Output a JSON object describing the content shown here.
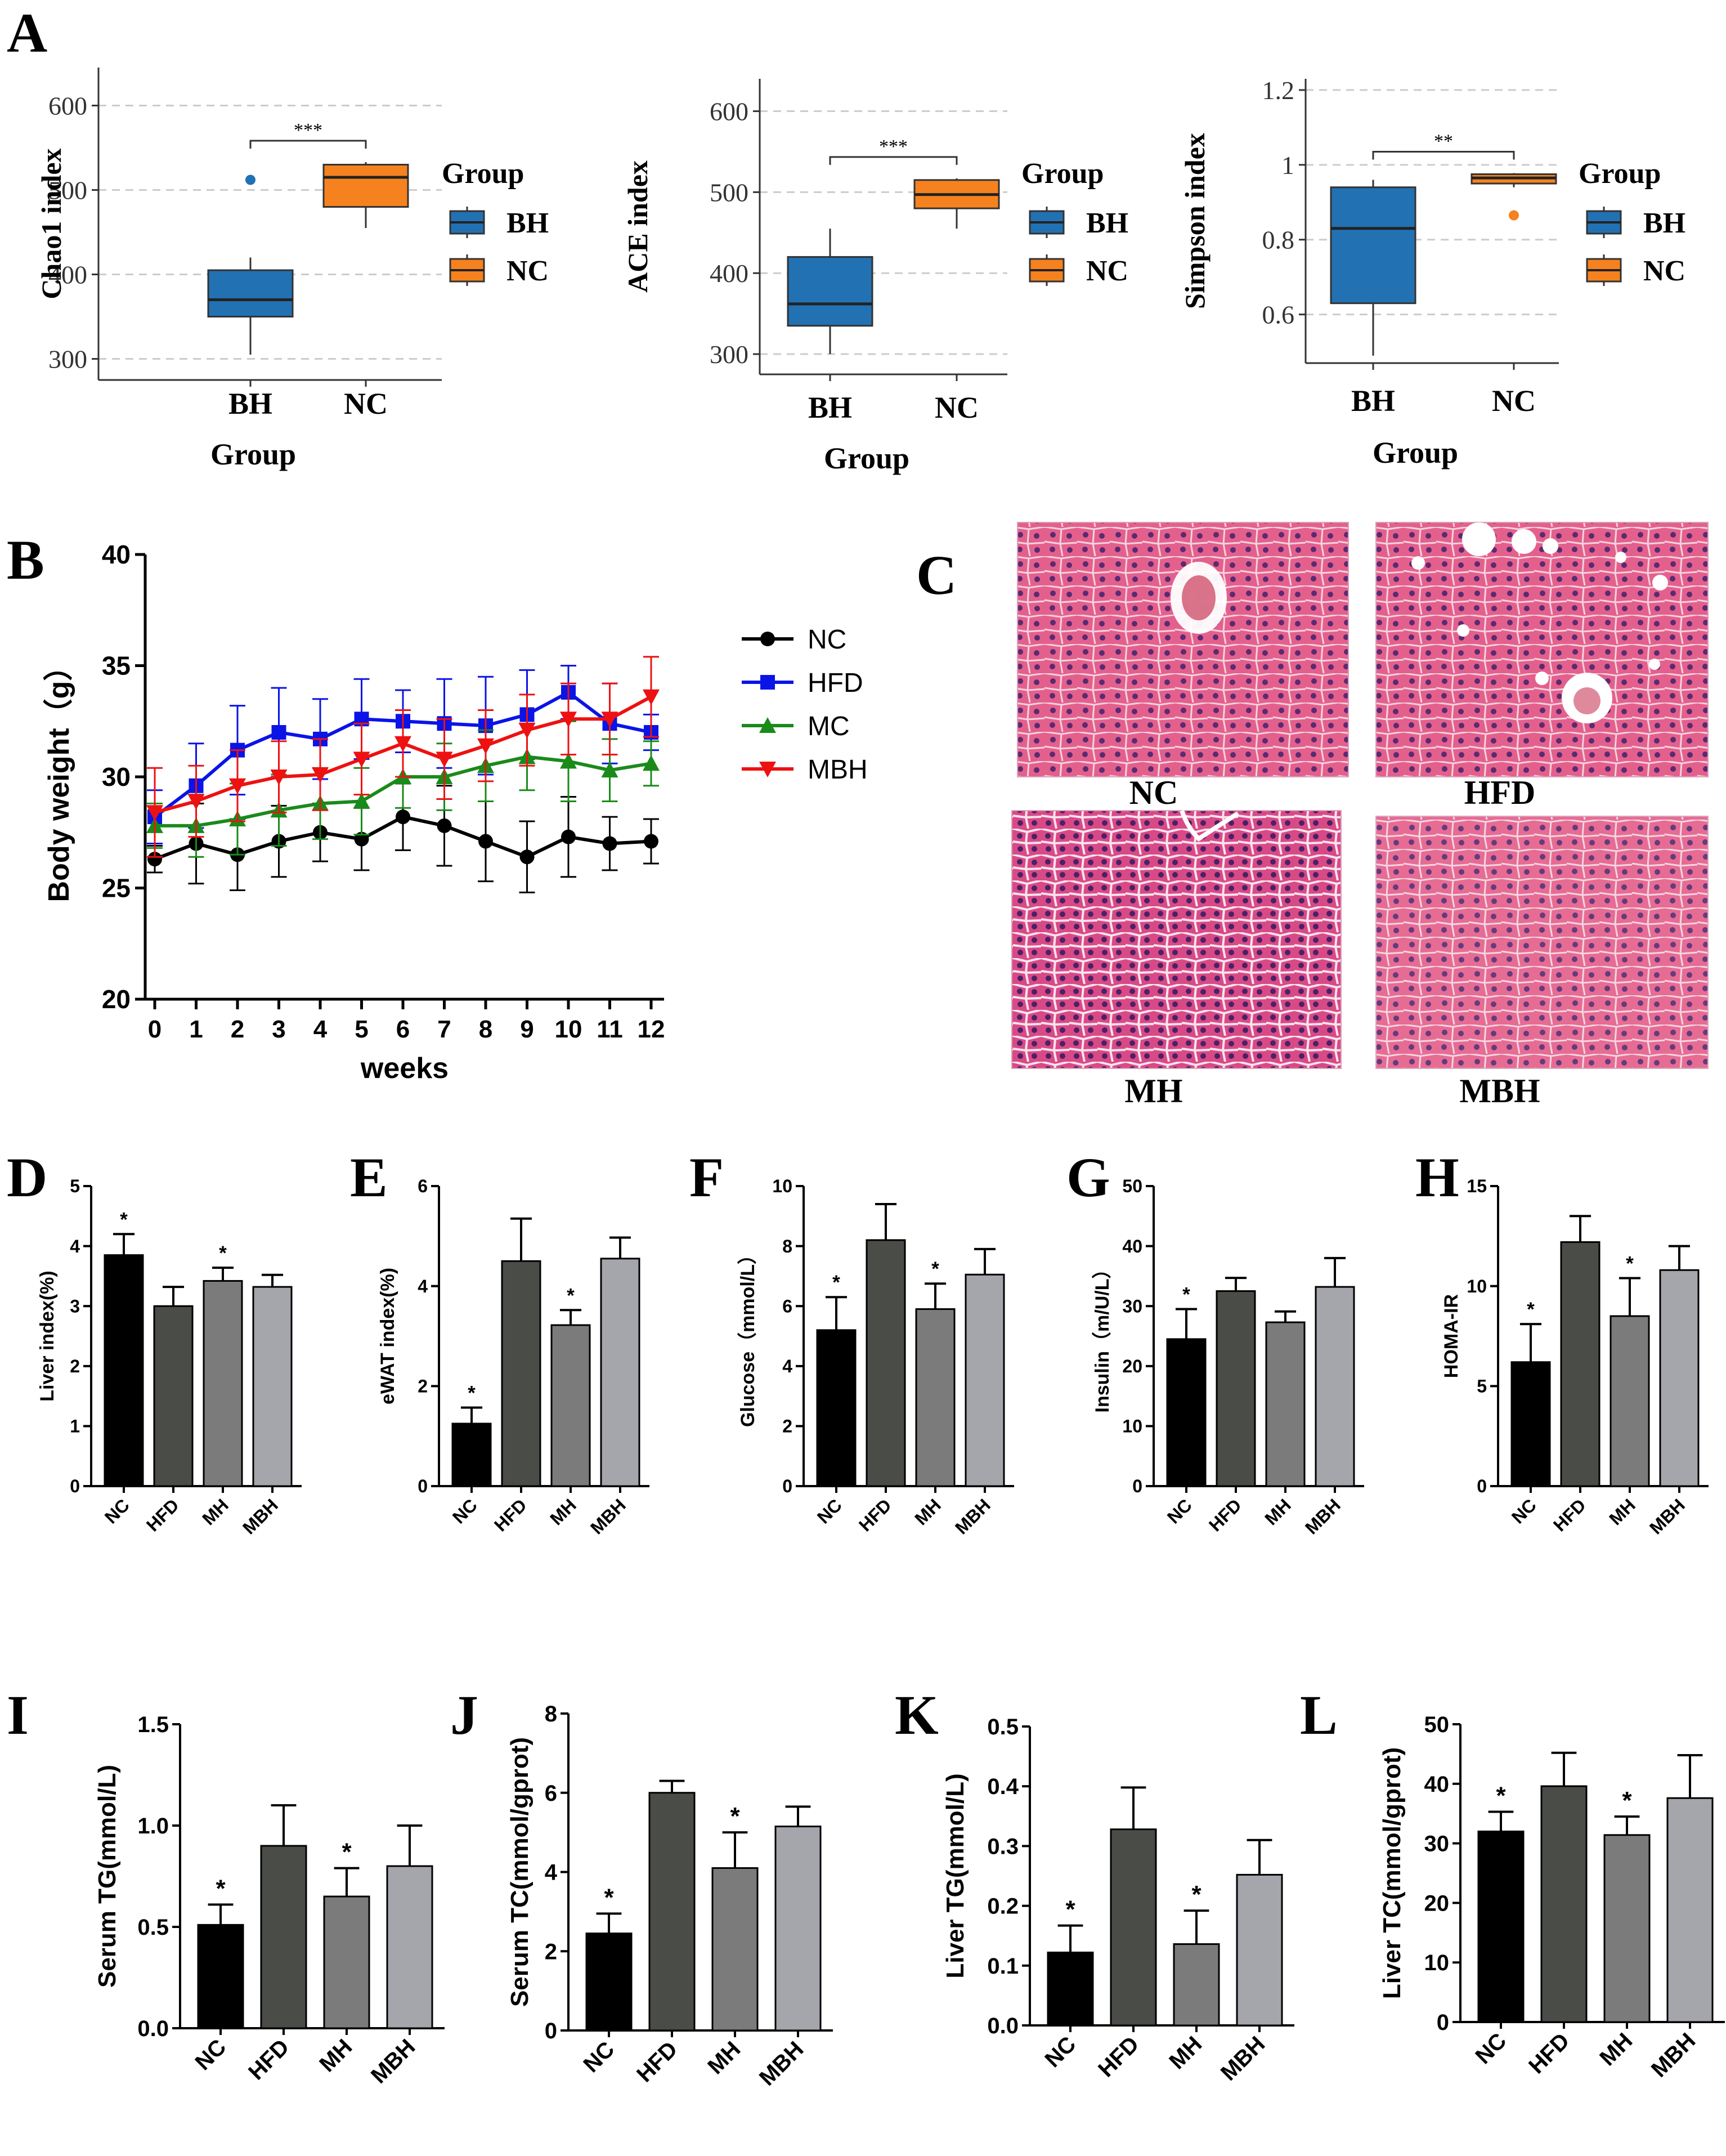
{
  "figure": {
    "panel_labels": {
      "A": "A",
      "B": "B",
      "C": "C",
      "D": "D",
      "E": "E",
      "F": "F",
      "G": "G",
      "H": "H",
      "I": "I",
      "J": "J",
      "K": "K",
      "L": "L"
    },
    "colors": {
      "bh": "#2271b3",
      "nc_orange": "#f5821f",
      "nc_line": "#000000",
      "hfd_line": "#0a14e6",
      "mc_line": "#1a8a1a",
      "mbh_line": "#ee1111",
      "bar_nc": "#000000",
      "bar_hfd": "#4a4c48",
      "bar_mh": "#7b7b7b",
      "bar_mbh": "#a5a6ac"
    }
  },
  "histology": {
    "labels": [
      "NC",
      "HFD",
      "MH",
      "MBH"
    ]
  },
  "chart_data": [
    {
      "id": "A1",
      "type": "box",
      "ylabel": "Chao1 index",
      "xlabel": "Group",
      "categories": [
        "BH",
        "NC"
      ],
      "ylim": [
        275,
        645
      ],
      "yticks": [
        300,
        400,
        500,
        600
      ],
      "boxes": [
        {
          "name": "BH",
          "whisker_low": 305,
          "q1": 350,
          "median": 370,
          "q3": 405,
          "whisker_high": 420,
          "outliers": [
            512
          ]
        },
        {
          "name": "NC",
          "whisker_low": 455,
          "q1": 480,
          "median": 515,
          "q3": 530,
          "whisker_high": 533,
          "outliers": []
        }
      ],
      "significance": "***",
      "legend": {
        "title": "Group",
        "items": [
          "BH",
          "NC"
        ]
      }
    },
    {
      "id": "A2",
      "type": "box",
      "ylabel": "ACE index",
      "xlabel": "Group",
      "categories": [
        "BH",
        "NC"
      ],
      "ylim": [
        275,
        640
      ],
      "yticks": [
        300,
        400,
        500,
        600
      ],
      "boxes": [
        {
          "name": "BH",
          "whisker_low": 300,
          "q1": 335,
          "median": 362,
          "q3": 420,
          "whisker_high": 455,
          "outliers": []
        },
        {
          "name": "NC",
          "whisker_low": 455,
          "q1": 480,
          "median": 497,
          "q3": 515,
          "whisker_high": 517,
          "outliers": []
        }
      ],
      "significance": "***",
      "legend": {
        "title": "Group",
        "items": [
          "BH",
          "NC"
        ]
      }
    },
    {
      "id": "A3",
      "type": "box",
      "ylabel": "Simpson index",
      "xlabel": "Group",
      "categories": [
        "BH",
        "NC"
      ],
      "ylim": [
        0.47,
        1.23
      ],
      "yticks": [
        0.6,
        0.8,
        1.0,
        1.2
      ],
      "ytick_labels": [
        "0.6",
        "0.8",
        "1",
        "1.2"
      ],
      "boxes": [
        {
          "name": "BH",
          "whisker_low": 0.49,
          "q1": 0.63,
          "median": 0.83,
          "q3": 0.94,
          "whisker_high": 0.96,
          "outliers": []
        },
        {
          "name": "NC",
          "whisker_low": 0.94,
          "q1": 0.95,
          "median": 0.965,
          "q3": 0.975,
          "whisker_high": 0.978,
          "outliers": [
            0.865
          ]
        }
      ],
      "significance": "**",
      "legend": {
        "title": "Group",
        "items": [
          "BH",
          "NC"
        ]
      }
    },
    {
      "id": "B",
      "type": "line",
      "xlabel": "weeks",
      "ylabel": "Body weight（g）",
      "x": [
        0,
        1,
        2,
        3,
        4,
        5,
        6,
        7,
        8,
        9,
        10,
        11,
        12
      ],
      "ylim": [
        20,
        40
      ],
      "yticks": [
        20,
        25,
        30,
        35,
        40
      ],
      "series": [
        {
          "name": "NC",
          "marker": "circle",
          "values": [
            26.3,
            27.0,
            26.5,
            27.1,
            27.5,
            27.2,
            28.2,
            27.8,
            27.1,
            26.4,
            27.3,
            27.0,
            27.1
          ],
          "errors": [
            0.6,
            1.8,
            1.6,
            1.6,
            1.3,
            1.4,
            1.5,
            1.8,
            1.8,
            1.6,
            1.8,
            1.2,
            1.0
          ]
        },
        {
          "name": "HFD",
          "marker": "square",
          "values": [
            28.2,
            29.6,
            31.2,
            32.0,
            31.7,
            32.6,
            32.5,
            32.4,
            32.3,
            32.8,
            33.8,
            32.4,
            32.0
          ],
          "errors": [
            1.2,
            1.9,
            2.0,
            2.0,
            1.8,
            1.8,
            1.4,
            2.0,
            2.2,
            2.0,
            1.2,
            1.8,
            0.8
          ]
        },
        {
          "name": "MC",
          "marker": "triangle-up",
          "values": [
            27.8,
            27.8,
            28.1,
            28.5,
            28.8,
            28.9,
            30.0,
            30.0,
            30.5,
            30.9,
            30.7,
            30.3,
            30.6
          ],
          "errors": [
            1.0,
            1.4,
            1.6,
            1.6,
            1.6,
            1.5,
            1.4,
            1.5,
            1.6,
            1.5,
            1.8,
            1.4,
            1.0
          ]
        },
        {
          "name": "MBH",
          "marker": "triangle-down",
          "values": [
            28.4,
            28.9,
            29.6,
            30.0,
            30.1,
            30.8,
            31.5,
            30.8,
            31.4,
            32.1,
            32.6,
            32.6,
            33.6
          ],
          "errors": [
            2.0,
            1.6,
            1.6,
            1.6,
            1.6,
            1.6,
            1.5,
            1.8,
            1.6,
            1.6,
            1.6,
            1.6,
            1.8
          ]
        }
      ]
    },
    {
      "id": "D",
      "type": "bar",
      "ylabel": "Liver index(%)",
      "categories": [
        "NC",
        "HFD",
        "MH",
        "MBH"
      ],
      "values": [
        3.85,
        3.0,
        3.42,
        3.32
      ],
      "errors": [
        0.35,
        0.32,
        0.22,
        0.2
      ],
      "significant": [
        true,
        false,
        true,
        false
      ],
      "ylim": [
        0,
        5
      ],
      "yticks": [
        0,
        1,
        2,
        3,
        4,
        5
      ]
    },
    {
      "id": "E",
      "type": "bar",
      "ylabel": "eWAT index(%)",
      "categories": [
        "NC",
        "HFD",
        "MH",
        "MBH"
      ],
      "values": [
        1.25,
        4.5,
        3.22,
        4.55
      ],
      "errors": [
        0.32,
        0.85,
        0.3,
        0.42
      ],
      "significant": [
        true,
        false,
        true,
        false
      ],
      "ylim": [
        0,
        6
      ],
      "yticks": [
        0,
        2,
        4,
        6
      ]
    },
    {
      "id": "F",
      "type": "bar",
      "ylabel": "Glucose（mmol/L）",
      "categories": [
        "NC",
        "HFD",
        "MH",
        "MBH"
      ],
      "values": [
        5.2,
        8.2,
        5.9,
        7.05
      ],
      "errors": [
        1.1,
        1.2,
        0.85,
        0.85
      ],
      "significant": [
        true,
        false,
        true,
        false
      ],
      "ylim": [
        0,
        10
      ],
      "yticks": [
        0,
        2,
        4,
        6,
        8,
        10
      ]
    },
    {
      "id": "G",
      "type": "bar",
      "ylabel": "Insulin（m/U/L）",
      "categories": [
        "NC",
        "HFD",
        "MH",
        "MBH"
      ],
      "values": [
        24.5,
        32.5,
        27.3,
        33.2
      ],
      "errors": [
        5.0,
        2.2,
        1.8,
        4.8
      ],
      "significant": [
        true,
        false,
        false,
        false
      ],
      "ylim": [
        0,
        50
      ],
      "yticks": [
        0,
        10,
        20,
        30,
        40,
        50
      ]
    },
    {
      "id": "H",
      "type": "bar",
      "ylabel": "HOMA-IR",
      "categories": [
        "NC",
        "HFD",
        "MH",
        "MBH"
      ],
      "values": [
        6.2,
        12.2,
        8.5,
        10.8
      ],
      "errors": [
        1.9,
        1.3,
        1.9,
        1.2
      ],
      "significant": [
        true,
        false,
        true,
        false
      ],
      "ylim": [
        0,
        15
      ],
      "yticks": [
        0,
        5,
        10,
        15
      ]
    },
    {
      "id": "I",
      "type": "bar",
      "ylabel": "Serum TG(mmol/L)",
      "categories": [
        "NC",
        "HFD",
        "MH",
        "MBH"
      ],
      "values": [
        0.51,
        0.9,
        0.65,
        0.8
      ],
      "errors": [
        0.1,
        0.2,
        0.14,
        0.2
      ],
      "significant": [
        true,
        false,
        true,
        false
      ],
      "ylim": [
        0,
        1.5
      ],
      "yticks": [
        0,
        0.5,
        1.0,
        1.5
      ],
      "ytick_labels": [
        "0.0",
        "0.5",
        "1.0",
        "1.5"
      ]
    },
    {
      "id": "J",
      "type": "bar",
      "ylabel": "Serum TC(mmol/gprot)",
      "categories": [
        "NC",
        "HFD",
        "MH",
        "MBH"
      ],
      "values": [
        2.45,
        6.0,
        4.1,
        5.15
      ],
      "errors": [
        0.5,
        0.3,
        0.9,
        0.5
      ],
      "significant": [
        true,
        false,
        true,
        false
      ],
      "ylim": [
        0,
        8
      ],
      "yticks": [
        0,
        2,
        4,
        6,
        8
      ]
    },
    {
      "id": "K",
      "type": "bar",
      "ylabel": "Liver TG(mmol/L)",
      "categories": [
        "NC",
        "HFD",
        "MH",
        "MBH"
      ],
      "values": [
        0.122,
        0.328,
        0.136,
        0.252
      ],
      "errors": [
        0.045,
        0.07,
        0.056,
        0.058
      ],
      "significant": [
        true,
        false,
        true,
        false
      ],
      "ylim": [
        0,
        0.5
      ],
      "yticks": [
        0,
        0.1,
        0.2,
        0.3,
        0.4,
        0.5
      ],
      "ytick_labels": [
        "0.0",
        "0.1",
        "0.2",
        "0.3",
        "0.4",
        "0.5"
      ]
    },
    {
      "id": "L",
      "type": "bar",
      "ylabel": "Liver TC(mmol/gprot)",
      "categories": [
        "NC",
        "HFD",
        "MH",
        "MBH"
      ],
      "values": [
        32.0,
        39.6,
        31.4,
        37.6
      ],
      "errors": [
        3.3,
        5.6,
        3.1,
        7.2
      ],
      "significant": [
        true,
        false,
        true,
        false
      ],
      "ylim": [
        0,
        50
      ],
      "yticks": [
        0,
        10,
        20,
        30,
        40,
        50
      ]
    }
  ]
}
